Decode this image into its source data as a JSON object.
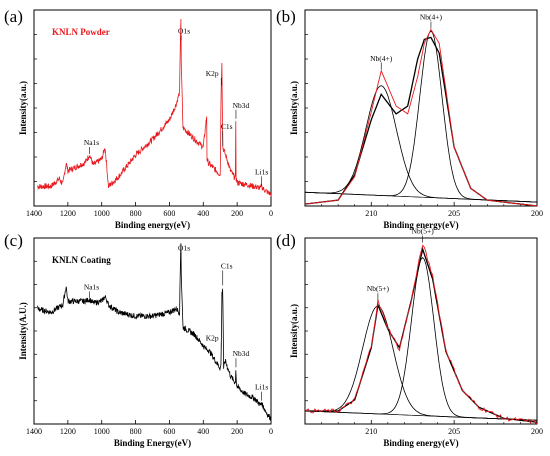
{
  "chart_data": [
    {
      "panel": "(a)",
      "type": "line",
      "legend": "KNLN Powder",
      "xlabel": "Binding energy(eV)",
      "ylabel": "Intensity(a.u.)",
      "xlim": [
        1400,
        0
      ],
      "x_ticks": [
        1400,
        1200,
        1000,
        800,
        600,
        400,
        200,
        0
      ],
      "colors": {
        "series": "#e8181d"
      },
      "series": [
        {
          "x": [
            1380,
            1300,
            1250,
            1230,
            1210,
            1200,
            1100,
            1072,
            1050,
            1000,
            980,
            960,
            900,
            800,
            700,
            600,
            560,
            540,
            535,
            532,
            530,
            520,
            450,
            400,
            380,
            378,
            370,
            300,
            295,
            290,
            285,
            260,
            240,
            210,
            208,
            207,
            206,
            200,
            150,
            100,
            60,
            56,
            55,
            50,
            20,
            0
          ],
          "y": [
            10,
            10,
            14,
            11,
            22,
            18,
            22,
            26,
            21,
            24,
            30,
            10,
            15,
            26,
            34,
            44,
            52,
            58,
            86,
            96,
            72,
            40,
            34,
            30,
            46,
            24,
            22,
            16,
            58,
            74,
            30,
            24,
            18,
            14,
            44,
            44,
            14,
            12,
            11,
            10,
            9,
            11,
            10,
            9,
            7,
            6
          ]
        }
      ],
      "annotations": [
        {
          "text": "O1s",
          "x": 531
        },
        {
          "text": "Na1s",
          "x": 1072
        },
        {
          "text": "K2p",
          "x": 294
        },
        {
          "text": "C1s",
          "x": 285
        },
        {
          "text": "Nb3d",
          "x": 207
        },
        {
          "text": "Li1s",
          "x": 55
        }
      ]
    },
    {
      "panel": "(b)",
      "type": "line",
      "xlabel": "Binding energy(eV)",
      "ylabel": "Intensity(a.u.)",
      "xlim": [
        214,
        200
      ],
      "x_ticks": [
        210,
        205,
        200
      ],
      "colors": {
        "measured": "#e8181d",
        "fit": "#000000"
      },
      "peaks": [
        {
          "label": "Nb(4+)",
          "center": 209.4,
          "height": 56
        },
        {
          "label": "Nb(4+)",
          "center": 206.4,
          "height": 85
        }
      ],
      "series": [
        {
          "kind": "measured",
          "x": [
            214,
            212,
            211,
            210,
            209.4,
            208.5,
            207.8,
            207.2,
            206.8,
            206.4,
            205.9,
            205,
            204,
            203,
            201,
            200
          ],
          "y": [
            1,
            3,
            15,
            48,
            69,
            51,
            47,
            66,
            83,
            90,
            83,
            30,
            9,
            3,
            1,
            0
          ]
        },
        {
          "kind": "envelope",
          "x": [
            214,
            212,
            211,
            210,
            209.4,
            208.5,
            207.8,
            207.2,
            206.8,
            206.4,
            205.9,
            205,
            204,
            203,
            201,
            200
          ],
          "y": [
            1,
            3,
            16,
            44,
            57,
            47,
            51,
            75,
            85,
            86,
            78,
            30,
            9,
            3,
            1,
            0
          ]
        }
      ]
    },
    {
      "panel": "(c)",
      "type": "line",
      "legend": "KNLN Coating",
      "xlabel": "Binding Energy(eV)",
      "ylabel": "Intensity(A.U.)",
      "xlim": [
        1400,
        0
      ],
      "x_ticks": [
        1400,
        1200,
        1000,
        800,
        600,
        400,
        200,
        0
      ],
      "colors": {
        "series": "#000000"
      },
      "series": [
        {
          "x": [
            1380,
            1300,
            1250,
            1230,
            1210,
            1200,
            1100,
            1072,
            1050,
            1000,
            985,
            975,
            960,
            900,
            800,
            700,
            600,
            560,
            540,
            535,
            532,
            530,
            520,
            450,
            400,
            380,
            370,
            300,
            295,
            290,
            285,
            280,
            270,
            240,
            210,
            208,
            207,
            205,
            200,
            150,
            100,
            60,
            55,
            50,
            20,
            0
          ],
          "y": [
            62,
            60,
            63,
            64,
            74,
            66,
            66,
            67,
            65,
            66,
            68,
            68,
            64,
            60,
            58,
            58,
            60,
            62,
            60,
            88,
            98,
            80,
            52,
            48,
            42,
            40,
            40,
            30,
            32,
            70,
            74,
            30,
            34,
            26,
            22,
            30,
            30,
            22,
            20,
            16,
            14,
            10,
            12,
            10,
            5,
            3
          ]
        }
      ],
      "annotations": [
        {
          "text": "O1s",
          "x": 531
        },
        {
          "text": "Na1s",
          "x": 1072
        },
        {
          "text": "C1s",
          "x": 285
        },
        {
          "text": "K2p",
          "x": 294
        },
        {
          "text": "Nb3d",
          "x": 207
        },
        {
          "text": "Li1s",
          "x": 55
        }
      ]
    },
    {
      "panel": "(d)",
      "type": "line",
      "xlabel": "Binding energy(eV)",
      "ylabel": "Intensity(a.u.)",
      "xlim": [
        214,
        200
      ],
      "x_ticks": [
        210,
        205,
        200
      ],
      "colors": {
        "measured": "#e8181d",
        "fit": "#000000"
      },
      "peaks": [
        {
          "label": "Nb(5+)",
          "center": 209.6,
          "height": 58
        },
        {
          "label": "Nb(5+)",
          "center": 206.9,
          "height": 85
        }
      ],
      "series": [
        {
          "kind": "measured",
          "x": [
            214,
            212,
            211,
            210,
            209.6,
            209,
            208.3,
            207.6,
            206.9,
            206.3,
            205.5,
            204.5,
            203.5,
            202,
            200
          ],
          "y": [
            7,
            7,
            13,
            42,
            66,
            52,
            40,
            66,
            97,
            80,
            40,
            18,
            9,
            3,
            1
          ]
        },
        {
          "kind": "envelope",
          "x": [
            214,
            212,
            211,
            210,
            209.6,
            209,
            208.3,
            207.6,
            206.9,
            206.3,
            205.5,
            204.5,
            203.5,
            202,
            200
          ],
          "y": [
            7,
            7,
            13,
            41,
            64,
            51,
            41,
            66,
            94,
            78,
            39,
            18,
            9,
            3,
            1
          ]
        }
      ]
    }
  ]
}
